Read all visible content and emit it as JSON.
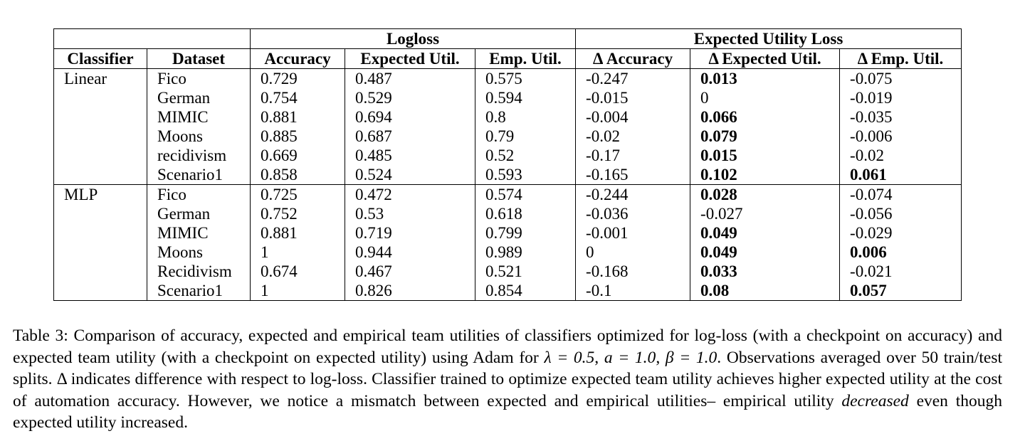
{
  "table": {
    "group_headers": [
      "Logloss",
      "Expected Utility Loss"
    ],
    "columns": [
      "Classifier",
      "Dataset",
      "Accuracy",
      "Expected Util.",
      "Emp. Util.",
      "Δ Accuracy",
      "Δ Expected Util.",
      "Δ Emp. Util."
    ],
    "groups": [
      {
        "classifier": "Linear",
        "rows": [
          {
            "dataset": "Fico",
            "vals": [
              "0.729",
              "0.487",
              "0.575",
              "-0.247",
              "0.013",
              "-0.075"
            ],
            "bold": [
              false,
              false,
              false,
              false,
              true,
              false
            ]
          },
          {
            "dataset": "German",
            "vals": [
              "0.754",
              "0.529",
              "0.594",
              "-0.015",
              "0",
              "-0.019"
            ],
            "bold": [
              false,
              false,
              false,
              false,
              false,
              false
            ]
          },
          {
            "dataset": "MIMIC",
            "vals": [
              "0.881",
              "0.694",
              "0.8",
              "-0.004",
              "0.066",
              "-0.035"
            ],
            "bold": [
              false,
              false,
              false,
              false,
              true,
              false
            ]
          },
          {
            "dataset": "Moons",
            "vals": [
              "0.885",
              "0.687",
              "0.79",
              "-0.02",
              "0.079",
              "-0.006"
            ],
            "bold": [
              false,
              false,
              false,
              false,
              true,
              false
            ]
          },
          {
            "dataset": "recidivism",
            "vals": [
              "0.669",
              "0.485",
              "0.52",
              "-0.17",
              "0.015",
              "-0.02"
            ],
            "bold": [
              false,
              false,
              false,
              false,
              true,
              false
            ]
          },
          {
            "dataset": "Scenario1",
            "vals": [
              "0.858",
              "0.524",
              "0.593",
              "-0.165",
              "0.102",
              "0.061"
            ],
            "bold": [
              false,
              false,
              false,
              false,
              true,
              true
            ]
          }
        ]
      },
      {
        "classifier": "MLP",
        "rows": [
          {
            "dataset": "Fico",
            "vals": [
              "0.725",
              "0.472",
              "0.574",
              "-0.244",
              "0.028",
              "-0.074"
            ],
            "bold": [
              false,
              false,
              false,
              false,
              true,
              false
            ]
          },
          {
            "dataset": "German",
            "vals": [
              "0.752",
              "0.53",
              "0.618",
              "-0.036",
              "-0.027",
              "-0.056"
            ],
            "bold": [
              false,
              false,
              false,
              false,
              false,
              false
            ]
          },
          {
            "dataset": "MIMIC",
            "vals": [
              "0.881",
              "0.719",
              "0.799",
              "-0.001",
              "0.049",
              "-0.029"
            ],
            "bold": [
              false,
              false,
              false,
              false,
              true,
              false
            ]
          },
          {
            "dataset": "Moons",
            "vals": [
              "1",
              "0.944",
              "0.989",
              "0",
              "0.049",
              "0.006"
            ],
            "bold": [
              false,
              false,
              false,
              false,
              true,
              true
            ]
          },
          {
            "dataset": "Recidivism",
            "vals": [
              "0.674",
              "0.467",
              "0.521",
              "-0.168",
              "0.033",
              "-0.021"
            ],
            "bold": [
              false,
              false,
              false,
              false,
              true,
              false
            ]
          },
          {
            "dataset": "Scenario1",
            "vals": [
              "1",
              "0.826",
              "0.854",
              "-0.1",
              "0.08",
              "0.057"
            ],
            "bold": [
              false,
              false,
              false,
              false,
              true,
              true
            ]
          }
        ]
      }
    ]
  },
  "caption": {
    "label": "Table 3:",
    "part1": "Comparison of accuracy, expected and empirical team utilities of classifiers optimized for log-loss (with a checkpoint on accuracy) and expected team utility (with a checkpoint on expected utility) using Adam for ",
    "lambda": "λ = 0.5",
    "sep1": ", ",
    "a": "a = 1.0",
    "sep2": ", ",
    "beta": "β = 1.0",
    "part2": ". Observations averaged over 50 train/test splits. Δ indicates difference with respect to log-loss. Classifier trained to optimize expected team utility achieves higher expected utility at the cost of automation accuracy. However, we notice a mismatch between expected and empirical utilities– empirical utility ",
    "emph": "decreased",
    "part3": " even though expected utility increased."
  }
}
